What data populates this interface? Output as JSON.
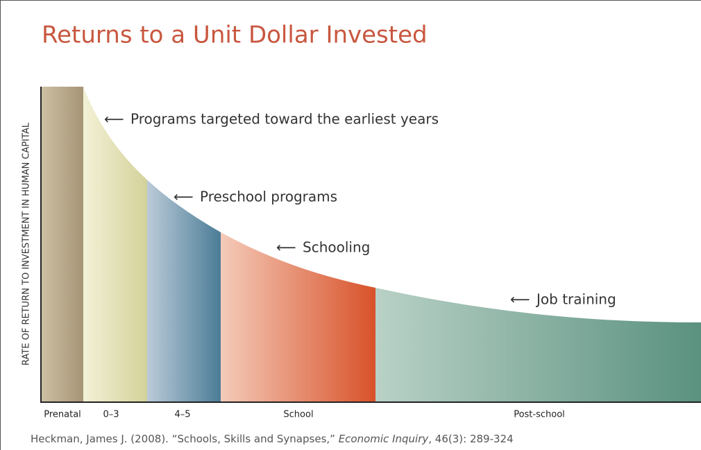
{
  "title": "Returns to a Unit Dollar Invested",
  "y_axis_label": "RATE OF RETURN TO INVESTMENT IN HUMAN CAPITAL",
  "stages": [
    "Prenatal",
    "0–3",
    "4–5",
    "School",
    "Post-school"
  ],
  "annotations": [
    "Programs targeted toward the earliest years",
    "Preschool programs",
    "Schooling",
    "Job training"
  ],
  "source": {
    "before": "Heckman, James J. (2008). “Schools, Skills and Synapses,” ",
    "journal": "Economic Inquiry",
    "after": ", 46(3): 289-324"
  }
}
